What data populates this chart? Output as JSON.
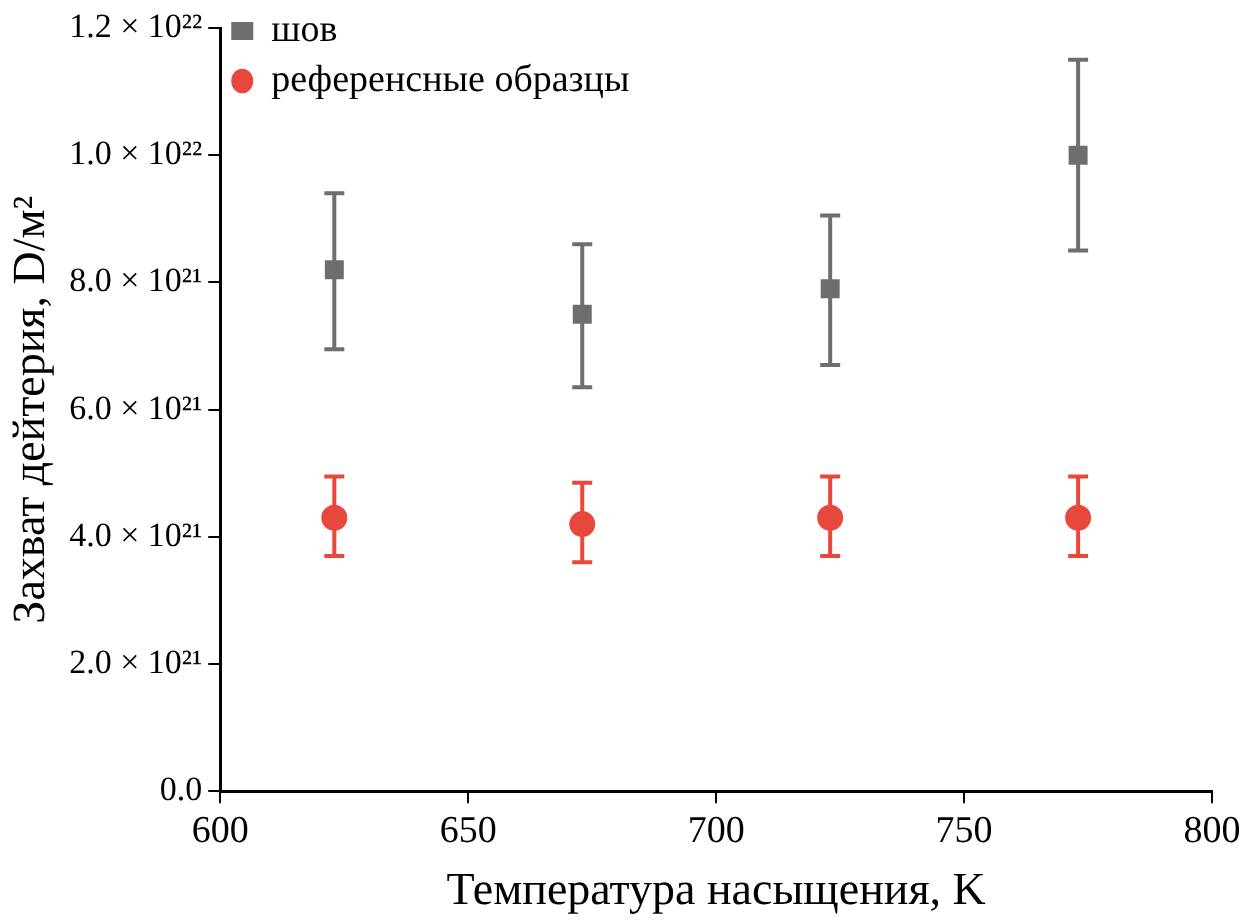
{
  "chart_data": {
    "type": "scatter",
    "xlabel": "Температура насыщения, K",
    "ylabel": "Захват дейтерия, D/м²",
    "xlim": [
      600,
      800
    ],
    "xticks": [
      600,
      650,
      700,
      750,
      800
    ],
    "ylim": [
      0,
      1.2e+22
    ],
    "yticks": [
      {
        "value": 0,
        "label": "0.0"
      },
      {
        "value": 2e+21,
        "label": "2.0 × 10²¹"
      },
      {
        "value": 4e+21,
        "label": "4.0 × 10²¹"
      },
      {
        "value": 6e+21,
        "label": "6.0 × 10²¹"
      },
      {
        "value": 8e+21,
        "label": "8.0 × 10²¹"
      },
      {
        "value": 1e+22,
        "label": "1.0 × 10²²"
      },
      {
        "value": 1.2e+22,
        "label": "1.2 × 10²²"
      }
    ],
    "grid": false,
    "legend": "top left",
    "series": [
      {
        "name": "шов",
        "color": "#6e6e6e",
        "marker": "square",
        "x": [
          623,
          673,
          723,
          773
        ],
        "values": [
          8.2e+21,
          7.5e+21,
          7.9e+21,
          1e+22
        ],
        "errors": [
          [
            6.95e+21,
            9.4e+21
          ],
          [
            6.35e+21,
            8.6e+21
          ],
          [
            6.7e+21,
            9.05e+21
          ],
          [
            8.5e+21,
            1.15e+22
          ]
        ]
      },
      {
        "name": "референсные образцы",
        "color": "#e8483c",
        "marker": "circle",
        "x": [
          623,
          673,
          723,
          773
        ],
        "values": [
          4.3e+21,
          4.2e+21,
          4.3e+21,
          4.3e+21
        ],
        "errors": [
          [
            3.7e+21,
            4.95e+21
          ],
          [
            3.6e+21,
            4.85e+21
          ],
          [
            3.7e+21,
            4.95e+21
          ],
          [
            3.7e+21,
            4.95e+21
          ]
        ]
      }
    ]
  }
}
